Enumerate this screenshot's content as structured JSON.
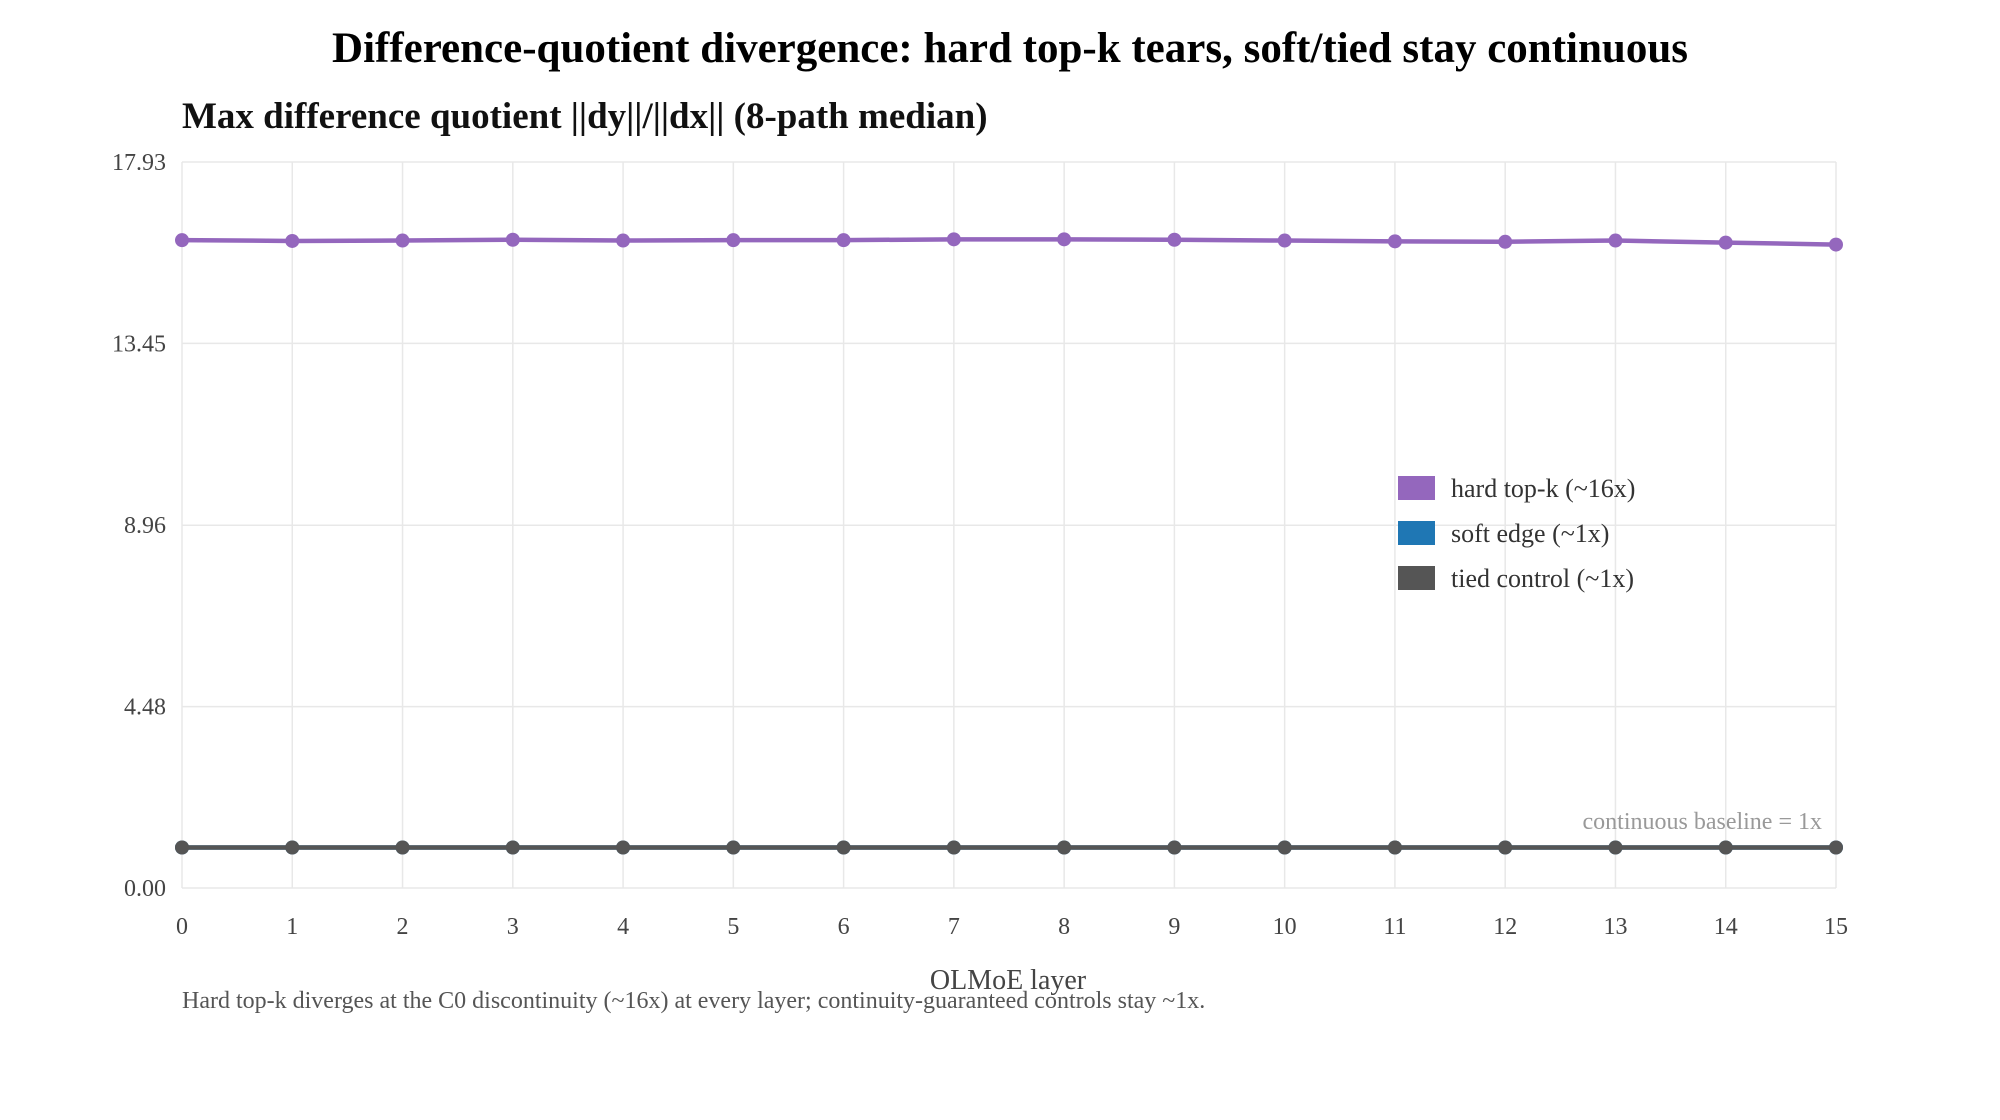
{
  "chart_data": {
    "type": "line",
    "title": "Difference-quotient divergence: hard top-k tears, soft/tied stay continuous",
    "subtitle": "Max difference quotient ||dy||/||dx|| (8-path median)",
    "xlabel": "OLMoE layer",
    "ylabel": "",
    "x": [
      0,
      1,
      2,
      3,
      4,
      5,
      6,
      7,
      8,
      9,
      10,
      11,
      12,
      13,
      14,
      15
    ],
    "xticks": [
      "0",
      "1",
      "2",
      "3",
      "4",
      "5",
      "6",
      "7",
      "8",
      "9",
      "10",
      "11",
      "12",
      "13",
      "14",
      "15"
    ],
    "yticks": [
      "0.00",
      "4.48",
      "8.96",
      "13.45",
      "17.93"
    ],
    "ylim": [
      0,
      17.93
    ],
    "grid": true,
    "legend_position": "right",
    "series": [
      {
        "name": "hard top-k (~16x)",
        "color": "#9467bd",
        "values": [
          16.0,
          15.98,
          15.99,
          16.01,
          15.99,
          16.0,
          16.0,
          16.02,
          16.02,
          16.01,
          15.99,
          15.97,
          15.96,
          15.99,
          15.94,
          15.89
        ]
      },
      {
        "name": "soft edge (~1x)",
        "color": "#1f77b4",
        "values": [
          1.0,
          1.0,
          1.0,
          1.0,
          1.0,
          1.0,
          1.0,
          1.0,
          1.0,
          1.0,
          1.0,
          1.0,
          1.0,
          1.0,
          1.0,
          1.0
        ]
      },
      {
        "name": "tied control (~1x)",
        "color": "#555555",
        "values": [
          1.0,
          1.0,
          1.0,
          1.0,
          1.0,
          1.0,
          1.0,
          1.0,
          1.0,
          1.0,
          1.0,
          1.0,
          1.0,
          1.0,
          1.0,
          1.0
        ]
      }
    ],
    "annotations": [
      {
        "text": "continuous baseline = 1x",
        "y": 1.0
      }
    ],
    "caption": "Hard top-k diverges at the C0 discontinuity (~16x) at every layer; continuity-guaranteed controls stay ~1x."
  }
}
